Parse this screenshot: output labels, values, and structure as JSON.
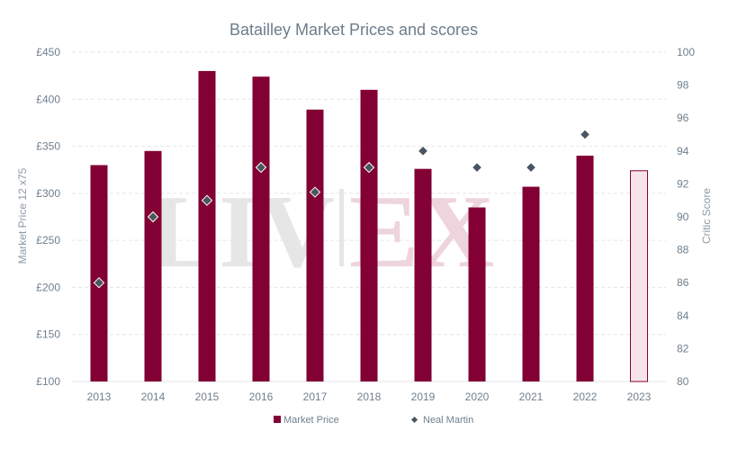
{
  "chart_data": {
    "type": "bar",
    "title": "Batailley Market Prices and scores",
    "categories": [
      "2013",
      "2014",
      "2015",
      "2016",
      "2017",
      "2018",
      "2019",
      "2020",
      "2021",
      "2022",
      "2023"
    ],
    "series": [
      {
        "name": "Market Price",
        "type": "bar",
        "axis": "left",
        "values": [
          330,
          345,
          430,
          424,
          389,
          410,
          326,
          285,
          307,
          340,
          324
        ],
        "color": "#820034",
        "highlight": {
          "category": "2023",
          "fill": "#f7e4ea",
          "stroke": "#820034"
        }
      },
      {
        "name": "Neal Martin",
        "type": "scatter",
        "axis": "right",
        "values": [
          86,
          90,
          91,
          93,
          91.5,
          93,
          94,
          93,
          93,
          95,
          null
        ],
        "color": "#4a5560"
      }
    ],
    "yaxis_left": {
      "label": "Market Price 12 x75",
      "range": [
        100,
        450
      ],
      "ticks": [
        100,
        150,
        200,
        250,
        300,
        350,
        400,
        450
      ],
      "tick_labels": [
        "£100",
        "£150",
        "£200",
        "£250",
        "£300",
        "£350",
        "£400",
        "£450"
      ]
    },
    "yaxis_right": {
      "label": "Critic Score",
      "range": [
        80,
        100
      ],
      "ticks": [
        80,
        82,
        84,
        86,
        88,
        90,
        92,
        94,
        96,
        98,
        100
      ],
      "tick_labels": [
        "80",
        "82",
        "84",
        "86",
        "88",
        "90",
        "92",
        "94",
        "96",
        "98",
        "100"
      ]
    },
    "grid": "horizontal dashed",
    "legend": {
      "position": "bottom",
      "entries": [
        "Market Price",
        "Neal Martin"
      ]
    },
    "watermark": "LIV|EX"
  }
}
